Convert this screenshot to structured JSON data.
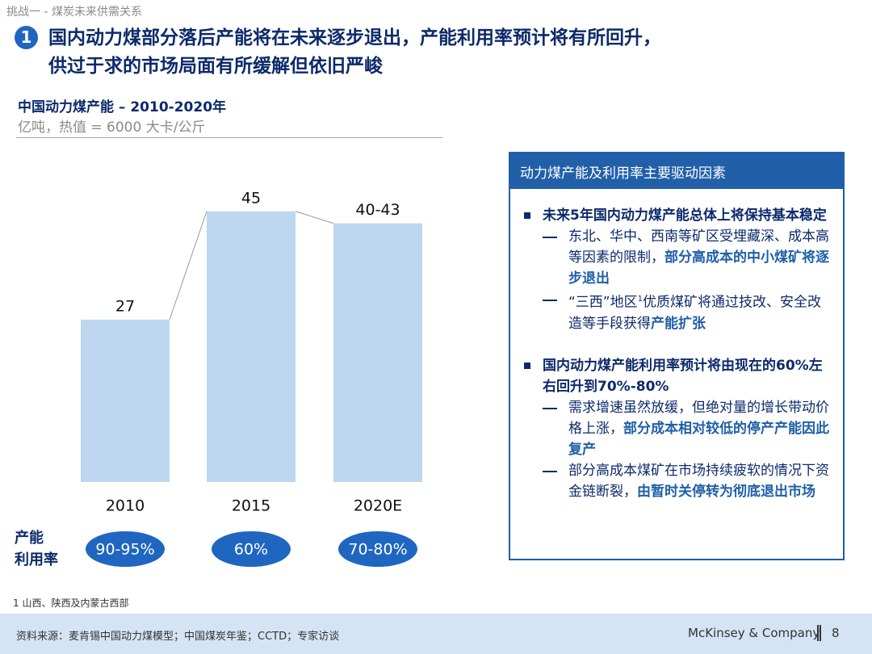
{
  "header": {
    "breadcrumb": "挑战一 - 煤炭未来供需关系",
    "number": "1",
    "title_lines": [
      "国内动力煤部分落后产能将在未来逐步退出，产能利用率预计将有所回升，",
      "供过于求的市场局面有所缓解但依旧严峻"
    ]
  },
  "chart_data": {
    "type": "bar",
    "title": "中国动力煤产能 – 2010-2020年",
    "subtitle": "亿吨，热值 = 6000 大卡/公斤",
    "categories": [
      "2010",
      "2015",
      "2020E"
    ],
    "values": [
      27,
      45,
      43
    ],
    "value_labels": [
      "27",
      "45",
      "40-43"
    ],
    "color": "#bdd7f1",
    "utilization_title": [
      "产能",
      "利用率"
    ],
    "utilization": [
      "90-95%",
      "60%",
      "70-80%"
    ],
    "utilization_color": "#1f66c1"
  },
  "drivers": {
    "title": "动力煤产能及利用率主要驱动因素",
    "items": [
      {
        "heading": "未来5年国内动力煤产能总体上将保持基本稳定",
        "subs": [
          [
            {
              "text": "东北、华中、西南等矿区受埋藏深、成本高等因素的限制，",
              "style": "normal"
            },
            {
              "text": "部分高成本的中小煤矿将逐步退出",
              "style": "bold"
            }
          ],
          [
            {
              "text": "“三西”地区",
              "style": "normal"
            },
            {
              "text": "1",
              "style": "sup"
            },
            {
              "text": "优质煤矿将通过技改、安全改造等手段获得",
              "style": "normal"
            },
            {
              "text": "产能扩张",
              "style": "bold"
            }
          ]
        ]
      },
      {
        "heading": "国内动力煤产能利用率预计将由现在的60%左右回升到70%-80%",
        "subs": [
          [
            {
              "text": "需求增速虽然放缓，但绝对量的增长带动价格上涨，",
              "style": "normal"
            },
            {
              "text": "部分成本相对较低的停产产能因此复产",
              "style": "bold"
            }
          ],
          [
            {
              "text": "部分高成本煤矿在市场持续疲软的情况下资金链断裂，",
              "style": "normal"
            },
            {
              "text": "由暂时关停转为彻底退出市场",
              "style": "bold"
            }
          ]
        ]
      }
    ]
  },
  "footnote": "1 山西、陕西及内蒙古西部",
  "footer": {
    "source": "资料来源：麦肯锡中国动力煤模型；中国煤炭年鉴；CCTD；专家访谈",
    "company": "McKinsey & Company",
    "page": "8"
  }
}
